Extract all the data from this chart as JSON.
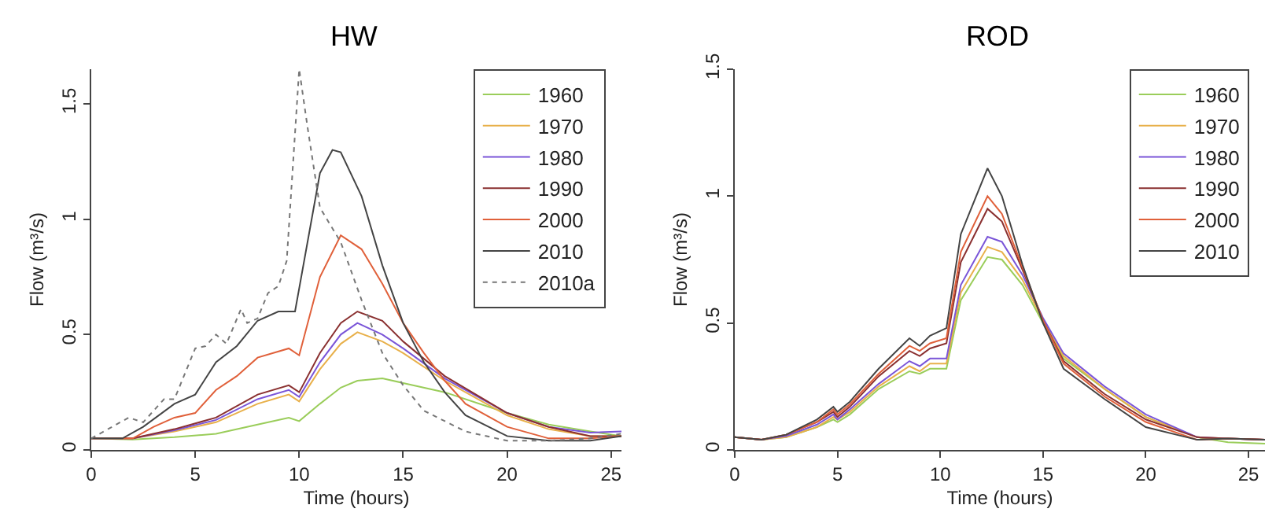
{
  "chart_data": [
    {
      "type": "line",
      "title": "HW",
      "xlabel": "Time (hours)",
      "ylabel": "Flow (m³/s)",
      "xlim": [
        0,
        25.5
      ],
      "ylim": [
        0,
        1.65
      ],
      "xticks": [
        0,
        5,
        10,
        15,
        20,
        25
      ],
      "yticks": [
        0,
        0.5,
        1,
        1.5
      ],
      "legend": "top right",
      "series": [
        {
          "name": "1960",
          "color": "#9acd5a",
          "x": [
            0,
            2,
            4,
            6,
            8,
            9.5,
            10,
            11,
            12,
            12.8,
            14,
            15,
            17,
            20,
            22,
            24,
            25.5
          ],
          "values": [
            0.05,
            0.045,
            0.055,
            0.07,
            0.11,
            0.14,
            0.125,
            0.2,
            0.27,
            0.3,
            0.31,
            0.29,
            0.25,
            0.16,
            0.11,
            0.08,
            0.06
          ]
        },
        {
          "name": "1970",
          "color": "#e8b04a",
          "x": [
            0,
            2,
            4,
            6,
            8,
            9.5,
            10,
            11,
            12,
            12.8,
            14,
            15,
            17,
            20,
            22,
            24,
            25.5
          ],
          "values": [
            0.05,
            0.05,
            0.08,
            0.12,
            0.2,
            0.24,
            0.21,
            0.35,
            0.46,
            0.51,
            0.47,
            0.42,
            0.3,
            0.15,
            0.09,
            0.06,
            0.06
          ]
        },
        {
          "name": "1980",
          "color": "#7a55d8",
          "x": [
            0,
            2,
            4,
            6,
            8,
            9.5,
            10,
            11,
            12,
            12.8,
            14,
            15,
            17,
            20,
            22,
            24,
            25.5
          ],
          "values": [
            0.05,
            0.05,
            0.085,
            0.13,
            0.22,
            0.26,
            0.23,
            0.38,
            0.5,
            0.55,
            0.5,
            0.44,
            0.31,
            0.16,
            0.1,
            0.075,
            0.08
          ]
        },
        {
          "name": "1990",
          "color": "#8a3030",
          "x": [
            0,
            2,
            4,
            6,
            8,
            9.5,
            10,
            11,
            12,
            12.8,
            14,
            15,
            17,
            20,
            22,
            24,
            25.5
          ],
          "values": [
            0.05,
            0.05,
            0.09,
            0.14,
            0.24,
            0.28,
            0.25,
            0.42,
            0.55,
            0.6,
            0.56,
            0.47,
            0.32,
            0.16,
            0.1,
            0.06,
            0.06
          ]
        },
        {
          "name": "2000",
          "color": "#e0603a",
          "x": [
            0,
            2,
            3,
            4,
            5,
            6,
            7,
            8,
            9.5,
            10,
            11,
            12,
            13,
            14,
            15,
            16,
            17,
            18,
            20,
            22,
            24,
            25.5
          ],
          "values": [
            0.05,
            0.05,
            0.1,
            0.14,
            0.16,
            0.26,
            0.32,
            0.4,
            0.44,
            0.41,
            0.75,
            0.93,
            0.87,
            0.72,
            0.55,
            0.42,
            0.3,
            0.2,
            0.1,
            0.05,
            0.05,
            0.06
          ]
        },
        {
          "name": "2010",
          "color": "#444444",
          "x": [
            0,
            1.5,
            2.5,
            4,
            5,
            6,
            7,
            8,
            9,
            9.8,
            10,
            11,
            11.6,
            12,
            13,
            14,
            15,
            16,
            17,
            18,
            20,
            22,
            24,
            25.5
          ],
          "values": [
            0.05,
            0.05,
            0.1,
            0.2,
            0.24,
            0.38,
            0.45,
            0.56,
            0.6,
            0.6,
            0.7,
            1.2,
            1.3,
            1.29,
            1.1,
            0.8,
            0.55,
            0.38,
            0.25,
            0.15,
            0.06,
            0.04,
            0.04,
            0.06
          ]
        },
        {
          "name": "2010a",
          "color": "#777777",
          "line_style": "dotted",
          "x": [
            0,
            1,
            1.8,
            2.5,
            3.5,
            4,
            5,
            5.5,
            6,
            6.5,
            7.2,
            7.5,
            8,
            8.5,
            9,
            9.4,
            10,
            10.4,
            11,
            12,
            13,
            14,
            15,
            16,
            18,
            20,
            22,
            24,
            25.5
          ],
          "values": [
            0.05,
            0.1,
            0.14,
            0.12,
            0.22,
            0.22,
            0.44,
            0.45,
            0.5,
            0.46,
            0.61,
            0.55,
            0.57,
            0.68,
            0.71,
            0.82,
            1.65,
            1.4,
            1.05,
            0.9,
            0.65,
            0.42,
            0.28,
            0.17,
            0.08,
            0.04,
            0.04,
            0.05,
            0.07
          ]
        }
      ]
    },
    {
      "type": "line",
      "title": "ROD",
      "xlabel": "Time (hours)",
      "ylabel": "Flow (m³/s)",
      "xlim": [
        0,
        25.8
      ],
      "ylim": [
        0,
        1.5
      ],
      "xticks": [
        0,
        5,
        10,
        15,
        20,
        25
      ],
      "yticks": [
        0,
        0.5,
        1,
        1.5
      ],
      "legend": "top right",
      "x": [
        0,
        1.3,
        2.5,
        4,
        4.8,
        5,
        5.6,
        7,
        8.5,
        9,
        9.5,
        10.3,
        11,
        12.3,
        13,
        14,
        15,
        16,
        18,
        20,
        22.5,
        24,
        25.8
      ],
      "series": [
        {
          "name": "1960",
          "color": "#9acd5a",
          "values": [
            0.05,
            0.04,
            0.05,
            0.09,
            0.12,
            0.11,
            0.14,
            0.24,
            0.31,
            0.3,
            0.32,
            0.32,
            0.59,
            0.76,
            0.75,
            0.65,
            0.5,
            0.36,
            0.24,
            0.13,
            0.05,
            0.03,
            0.025
          ]
        },
        {
          "name": "1970",
          "color": "#e8b04a",
          "values": [
            0.05,
            0.04,
            0.05,
            0.09,
            0.13,
            0.12,
            0.15,
            0.25,
            0.33,
            0.31,
            0.34,
            0.34,
            0.62,
            0.8,
            0.78,
            0.67,
            0.51,
            0.37,
            0.24,
            0.13,
            0.05,
            0.045,
            0.04
          ]
        },
        {
          "name": "1980",
          "color": "#7a55d8",
          "values": [
            0.05,
            0.04,
            0.055,
            0.1,
            0.14,
            0.12,
            0.16,
            0.26,
            0.35,
            0.33,
            0.36,
            0.36,
            0.65,
            0.84,
            0.82,
            0.69,
            0.52,
            0.38,
            0.25,
            0.14,
            0.05,
            0.045,
            0.04
          ]
        },
        {
          "name": "1990",
          "color": "#8a3030",
          "values": [
            0.05,
            0.04,
            0.06,
            0.11,
            0.15,
            0.13,
            0.17,
            0.29,
            0.39,
            0.37,
            0.4,
            0.42,
            0.74,
            0.95,
            0.9,
            0.71,
            0.51,
            0.35,
            0.22,
            0.12,
            0.05,
            0.045,
            0.04
          ]
        },
        {
          "name": "2000",
          "color": "#e0603a",
          "values": [
            0.05,
            0.04,
            0.06,
            0.11,
            0.16,
            0.14,
            0.18,
            0.3,
            0.41,
            0.39,
            0.42,
            0.44,
            0.78,
            1.0,
            0.93,
            0.72,
            0.51,
            0.34,
            0.21,
            0.11,
            0.04,
            0.045,
            0.04
          ]
        },
        {
          "name": "2010",
          "color": "#444444",
          "values": [
            0.05,
            0.04,
            0.06,
            0.12,
            0.17,
            0.15,
            0.19,
            0.32,
            0.44,
            0.41,
            0.45,
            0.48,
            0.85,
            1.11,
            1.0,
            0.73,
            0.5,
            0.32,
            0.2,
            0.09,
            0.04,
            0.045,
            0.04
          ]
        }
      ]
    }
  ]
}
